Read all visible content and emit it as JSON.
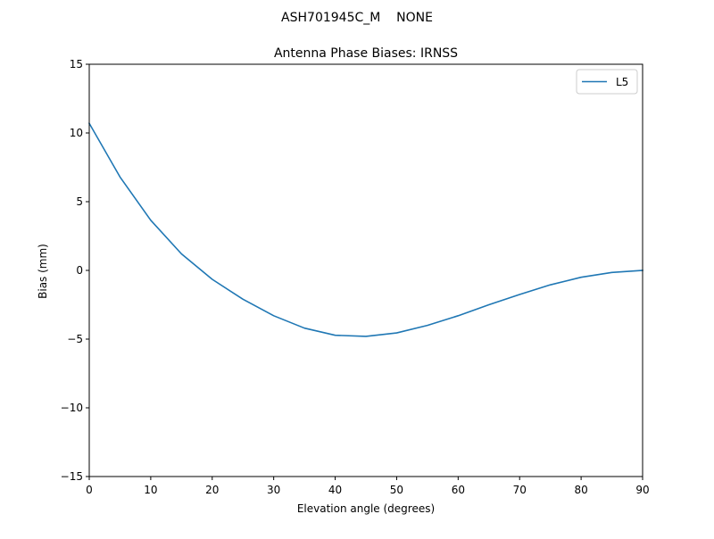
{
  "figure": {
    "suptitle": "ASH701945C_M    NONE"
  },
  "chart_data": {
    "type": "line",
    "title": "Antenna Phase Biases: IRNSS",
    "xlabel": "Elevation angle (degrees)",
    "ylabel": "Bias (mm)",
    "xlim": [
      0,
      90
    ],
    "ylim": [
      -15,
      15
    ],
    "xticks": [
      0,
      10,
      20,
      30,
      40,
      50,
      60,
      70,
      80,
      90
    ],
    "xtick_labels": [
      "0",
      "10",
      "20",
      "30",
      "40",
      "50",
      "60",
      "70",
      "80",
      "90"
    ],
    "yticks": [
      -15,
      -10,
      -5,
      0,
      5,
      10,
      15
    ],
    "ytick_labels": [
      "−15",
      "−10",
      "−5",
      "0",
      "5",
      "10",
      "15"
    ],
    "grid": false,
    "legend_position": "top-right",
    "series": [
      {
        "name": "L5",
        "color": "#1f77b4",
        "x": [
          0,
          5,
          10,
          15,
          20,
          25,
          30,
          35,
          40,
          45,
          50,
          55,
          60,
          65,
          70,
          75,
          80,
          85,
          90
        ],
        "y": [
          10.7,
          6.8,
          3.65,
          1.2,
          -0.65,
          -2.1,
          -3.3,
          -4.2,
          -4.72,
          -4.8,
          -4.55,
          -4.0,
          -3.3,
          -2.5,
          -1.75,
          -1.05,
          -0.5,
          -0.15,
          0.0
        ]
      }
    ]
  }
}
